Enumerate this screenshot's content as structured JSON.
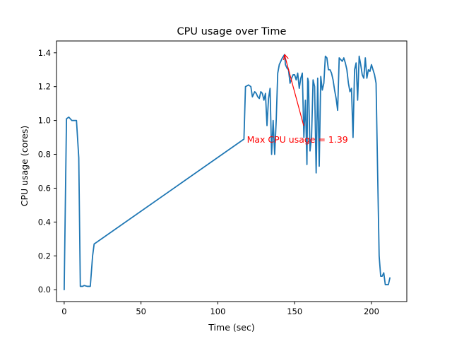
{
  "chart_data": {
    "type": "line",
    "title": "CPU usage over Time",
    "xlabel": "Time (sec)",
    "ylabel": "CPU usage (cores)",
    "xlim": [
      -5,
      223
    ],
    "ylim": [
      -0.07,
      1.47
    ],
    "xticks": [
      0,
      50,
      100,
      150,
      200
    ],
    "yticks": [
      0.0,
      0.2,
      0.4,
      0.6,
      0.8,
      1.0,
      1.2,
      1.4
    ],
    "xtick_labels": [
      "0",
      "50",
      "100",
      "150",
      "200"
    ],
    "ytick_labels": [
      "0.0",
      "0.2",
      "0.4",
      "0.6",
      "0.8",
      "1.0",
      "1.2",
      "1.4"
    ],
    "grid": false,
    "series": [
      {
        "color": "#1f77b4",
        "points": [
          [
            0,
            0.0
          ],
          [
            1.5,
            1.01
          ],
          [
            3,
            1.02
          ],
          [
            5,
            1.0
          ],
          [
            8,
            1.0
          ],
          [
            9.5,
            0.78
          ],
          [
            10.5,
            0.02
          ],
          [
            12,
            0.02
          ],
          [
            13,
            0.025
          ],
          [
            15,
            0.02
          ],
          [
            17,
            0.02
          ],
          [
            18.5,
            0.2
          ],
          [
            19.5,
            0.27
          ],
          [
            117,
            0.89
          ],
          [
            118,
            1.2
          ],
          [
            120,
            1.21
          ],
          [
            121.5,
            1.2
          ],
          [
            122.5,
            1.14
          ],
          [
            124,
            1.17
          ],
          [
            125,
            1.16
          ],
          [
            126,
            1.14
          ],
          [
            127,
            1.13
          ],
          [
            128,
            1.17
          ],
          [
            129,
            1.16
          ],
          [
            130,
            1.12
          ],
          [
            131,
            1.16
          ],
          [
            132,
            0.97
          ],
          [
            133,
            1.13
          ],
          [
            134,
            1.19
          ],
          [
            135,
            0.8
          ],
          [
            136,
            1.0
          ],
          [
            137,
            0.8
          ],
          [
            138,
            1.0
          ],
          [
            139,
            1.28
          ],
          [
            140,
            1.33
          ],
          [
            142,
            1.37
          ],
          [
            143.5,
            1.39
          ],
          [
            144,
            1.33
          ],
          [
            145,
            1.31
          ],
          [
            146,
            1.3
          ],
          [
            147,
            1.22
          ],
          [
            148,
            1.25
          ],
          [
            149,
            1.27
          ],
          [
            150,
            1.27
          ],
          [
            151,
            1.24
          ],
          [
            152,
            1.28
          ],
          [
            153,
            1.19
          ],
          [
            154,
            1.25
          ],
          [
            155,
            1.28
          ],
          [
            156,
            0.9
          ],
          [
            157,
            1.12
          ],
          [
            158,
            0.74
          ],
          [
            158.5,
            1.25
          ],
          [
            159,
            1.23
          ],
          [
            160,
            0.82
          ],
          [
            161,
            0.9
          ],
          [
            162,
            1.24
          ],
          [
            163,
            1.2
          ],
          [
            164,
            0.69
          ],
          [
            165,
            1.25
          ],
          [
            166,
            0.73
          ],
          [
            167,
            1.26
          ],
          [
            168,
            1.18
          ],
          [
            169,
            1.22
          ],
          [
            170,
            1.38
          ],
          [
            171,
            1.37
          ],
          [
            172,
            1.3
          ],
          [
            173,
            1.3
          ],
          [
            174,
            1.28
          ],
          [
            175,
            1.24
          ],
          [
            176,
            1.18
          ],
          [
            177,
            1.13
          ],
          [
            178,
            1.06
          ],
          [
            179,
            1.37
          ],
          [
            180,
            1.36
          ],
          [
            181,
            1.35
          ],
          [
            182,
            1.37
          ],
          [
            183,
            1.34
          ],
          [
            184,
            1.3
          ],
          [
            185,
            1.22
          ],
          [
            186,
            1.17
          ],
          [
            187,
            1.19
          ],
          [
            188,
            0.9
          ],
          [
            189,
            1.3
          ],
          [
            190,
            1.34
          ],
          [
            191,
            1.12
          ],
          [
            192,
            1.38
          ],
          [
            193,
            1.33
          ],
          [
            194,
            1.27
          ],
          [
            195,
            1.25
          ],
          [
            196,
            1.37
          ],
          [
            197,
            1.25
          ],
          [
            198,
            1.3
          ],
          [
            199,
            1.29
          ],
          [
            200,
            1.33
          ],
          [
            201,
            1.3
          ],
          [
            202,
            1.27
          ],
          [
            203,
            1.22
          ],
          [
            204,
            0.7
          ],
          [
            205,
            0.2
          ],
          [
            206,
            0.08
          ],
          [
            207,
            0.08
          ],
          [
            208,
            0.1
          ],
          [
            209,
            0.03
          ],
          [
            210,
            0.03
          ],
          [
            211,
            0.03
          ],
          [
            212,
            0.07
          ]
        ]
      }
    ],
    "annotation": {
      "text": "Max CPU usage = 1.39",
      "color": "#ff0000",
      "point": [
        143.5,
        1.39
      ],
      "text_anchor_point": [
        118,
        0.89
      ]
    }
  }
}
